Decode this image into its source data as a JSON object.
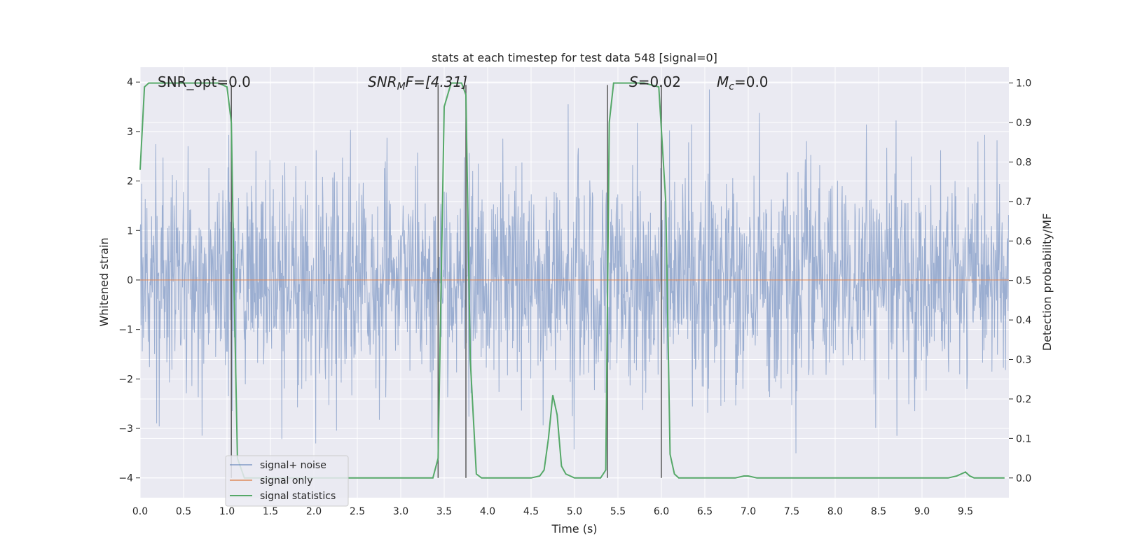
{
  "chart_data": {
    "type": "line",
    "title": "stats at each timestep for test data 548 [signal=0]",
    "xlabel": "Time (s)",
    "ylabel_left": "Whitened strain",
    "ylabel_right": "Detection probability/MF",
    "xlim": [
      0,
      10
    ],
    "ylim_left": [
      -4.4,
      4.3
    ],
    "ylim_right": [
      -0.05,
      1.04
    ],
    "x_ticks": [
      "0.0",
      "0.5",
      "1.0",
      "1.5",
      "2.0",
      "2.5",
      "3.0",
      "3.5",
      "4.0",
      "4.5",
      "5.0",
      "5.5",
      "6.0",
      "6.5",
      "7.0",
      "7.5",
      "8.0",
      "8.5",
      "9.0",
      "9.5"
    ],
    "y_left_ticks": [
      "−4",
      "−3",
      "−2",
      "−1",
      "0",
      "1",
      "2",
      "3",
      "4"
    ],
    "y_right_ticks": [
      "0.0",
      "0.1",
      "0.2",
      "0.3",
      "0.4",
      "0.5",
      "0.6",
      "0.7",
      "0.8",
      "0.9",
      "1.0"
    ],
    "grid": true,
    "background": "#eaeaf2",
    "annotations": {
      "snr_opt": "SNR_opt=0.0",
      "snr_mf_prefix": "SNR",
      "snr_mf_sub": "M",
      "snr_mf_suffix": "F=[4.31]",
      "s_prefix": "S",
      "s_suffix": "=0.02",
      "mc_prefix": "M",
      "mc_sub": "c",
      "mc_suffix": "=0.0"
    },
    "vertical_lines": [
      1.05,
      3.43,
      3.75,
      5.38,
      6.0
    ],
    "series": [
      {
        "name": "signal+ noise",
        "color": "#4c72b0",
        "description_values": "noise, roughly Gaussian, peaks up to about ±3.8",
        "amplitude_sigma": 1.0,
        "n_points": 2048
      },
      {
        "name": "signal only",
        "color": "#dd8452",
        "values": "zero everywhere"
      },
      {
        "name": "signal statistics",
        "color": "#55a868",
        "axis": "right",
        "x": [
          0.0,
          0.05,
          0.1,
          0.2,
          0.3,
          0.5,
          0.7,
          0.9,
          1.0,
          1.05,
          1.08,
          1.12,
          1.2,
          1.4,
          1.6,
          1.8,
          2.0,
          2.5,
          3.0,
          3.3,
          3.37,
          3.43,
          3.5,
          3.58,
          3.65,
          3.7,
          3.75,
          3.8,
          3.87,
          3.93,
          4.0,
          4.3,
          4.5,
          4.6,
          4.65,
          4.7,
          4.75,
          4.8,
          4.85,
          4.9,
          5.0,
          5.1,
          5.2,
          5.3,
          5.36,
          5.4,
          5.45,
          5.5,
          5.6,
          5.8,
          5.97,
          6.05,
          6.1,
          6.15,
          6.2,
          6.3,
          6.5,
          6.7,
          6.85,
          6.95,
          7.0,
          7.1,
          7.5,
          8.0,
          8.5,
          9.0,
          9.3,
          9.4,
          9.45,
          9.5,
          9.55,
          9.6,
          9.8,
          9.95
        ],
        "values": [
          0.78,
          0.99,
          1.0,
          1.0,
          1.0,
          1.0,
          1.0,
          1.0,
          0.99,
          0.9,
          0.5,
          0.05,
          0.0,
          0.0,
          0.0,
          0.0,
          0.0,
          0.0,
          0.0,
          0.0,
          0.0,
          0.05,
          0.94,
          1.0,
          1.0,
          1.0,
          0.97,
          0.3,
          0.01,
          0.0,
          0.0,
          0.0,
          0.0,
          0.005,
          0.02,
          0.1,
          0.21,
          0.16,
          0.03,
          0.01,
          0.0,
          0.0,
          0.0,
          0.0,
          0.02,
          0.9,
          1.0,
          1.0,
          1.0,
          1.0,
          0.99,
          0.7,
          0.06,
          0.01,
          0.0,
          0.0,
          0.0,
          0.0,
          0.0,
          0.005,
          0.005,
          0.0,
          0.0,
          0.0,
          0.0,
          0.0,
          0.0,
          0.005,
          0.01,
          0.015,
          0.005,
          0.0,
          0.0,
          0.0
        ]
      }
    ],
    "legend": {
      "placement": "lower-left",
      "entries": [
        "signal+ noise",
        "signal only",
        "signal statistics"
      ]
    }
  }
}
